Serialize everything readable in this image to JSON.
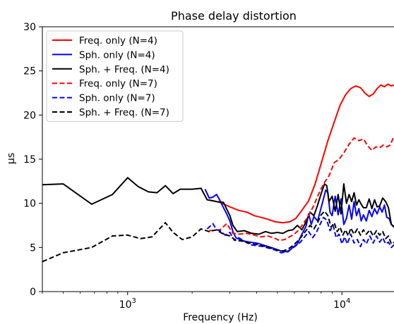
{
  "chart_data": {
    "type": "line",
    "title": "Phase delay distortion",
    "xlabel": "Frequency (Hz)",
    "ylabel": "μs",
    "xscale": "log",
    "xlim": [
      400,
      17500
    ],
    "ylim": [
      0,
      30
    ],
    "grid": false,
    "legend_position": "top-left",
    "x_tick_labels": [
      {
        "value": 1000,
        "base": "10",
        "exp": "3"
      },
      {
        "value": 10000,
        "base": "10",
        "exp": "4"
      }
    ],
    "y_ticks": [
      0,
      5,
      10,
      15,
      20,
      25,
      30
    ],
    "series": [
      {
        "name": "Freq. only (N=4)",
        "color": "#ff0000",
        "style": "solid",
        "points": [
          [
            2400,
            10.4
          ],
          [
            2700,
            10.1
          ],
          [
            3000,
            9.6
          ],
          [
            3300,
            9.2
          ],
          [
            3600,
            9.0
          ],
          [
            3900,
            8.6
          ],
          [
            4200,
            8.4
          ],
          [
            4500,
            8.2
          ],
          [
            4900,
            7.9
          ],
          [
            5300,
            7.8
          ],
          [
            5700,
            7.9
          ],
          [
            6100,
            8.3
          ],
          [
            6500,
            9.2
          ],
          [
            7000,
            10.3
          ],
          [
            7500,
            12.2
          ],
          [
            8000,
            14.5
          ],
          [
            8600,
            17.1
          ],
          [
            9200,
            19.2
          ],
          [
            9800,
            21.1
          ],
          [
            10400,
            22.3
          ],
          [
            11000,
            23.0
          ],
          [
            11600,
            23.3
          ],
          [
            12200,
            23.1
          ],
          [
            12800,
            22.5
          ],
          [
            13400,
            22.1
          ],
          [
            14000,
            22.4
          ],
          [
            14600,
            23.0
          ],
          [
            15200,
            23.4
          ],
          [
            15800,
            23.2
          ],
          [
            16400,
            23.5
          ],
          [
            17000,
            23.3
          ],
          [
            17500,
            23.4
          ]
        ]
      },
      {
        "name": "Sph. only (N=4)",
        "color": "#0000ff",
        "style": "solid",
        "points": [
          [
            2300,
            11.6
          ],
          [
            2400,
            10.6
          ],
          [
            2500,
            10.7
          ],
          [
            2600,
            11.0
          ],
          [
            2700,
            10.3
          ],
          [
            2800,
            9.5
          ],
          [
            2900,
            8.8
          ],
          [
            3000,
            8.0
          ],
          [
            3100,
            6.8
          ],
          [
            3200,
            6.1
          ],
          [
            3400,
            5.8
          ],
          [
            3700,
            5.6
          ],
          [
            4000,
            5.5
          ],
          [
            4400,
            5.2
          ],
          [
            4800,
            4.9
          ],
          [
            5200,
            4.6
          ],
          [
            5600,
            4.5
          ],
          [
            5900,
            5.0
          ],
          [
            6200,
            5.4
          ],
          [
            6500,
            6.5
          ],
          [
            6800,
            7.4
          ],
          [
            7000,
            8.8
          ],
          [
            7200,
            7.6
          ],
          [
            7400,
            8.5
          ],
          [
            7700,
            8.0
          ],
          [
            8000,
            9.5
          ],
          [
            8200,
            10.5
          ],
          [
            8400,
            11.5
          ],
          [
            8600,
            11.2
          ],
          [
            8800,
            9.0
          ],
          [
            9000,
            8.6
          ],
          [
            9300,
            10.8
          ],
          [
            9600,
            8.7
          ],
          [
            9900,
            10.5
          ],
          [
            10200,
            7.6
          ],
          [
            10500,
            8.3
          ],
          [
            10800,
            9.8
          ],
          [
            11100,
            8.2
          ],
          [
            11400,
            10.2
          ],
          [
            11700,
            8.6
          ],
          [
            12000,
            9.4
          ],
          [
            12300,
            8.0
          ],
          [
            12600,
            8.7
          ],
          [
            13000,
            8.0
          ],
          [
            13400,
            9.2
          ],
          [
            13800,
            8.5
          ],
          [
            14200,
            9.4
          ],
          [
            14600,
            8.8
          ],
          [
            15000,
            9.6
          ],
          [
            15400,
            9.0
          ],
          [
            15800,
            9.8
          ],
          [
            16200,
            8.4
          ],
          [
            16600,
            8.3
          ],
          [
            17000,
            7.6
          ],
          [
            17500,
            7.4
          ]
        ]
      },
      {
        "name": "Sph. + Freq. (N=4)",
        "color": "#000000",
        "style": "solid",
        "points": [
          [
            400,
            12.1
          ],
          [
            500,
            12.2
          ],
          [
            680,
            9.9
          ],
          [
            850,
            11.0
          ],
          [
            1000,
            12.9
          ],
          [
            1120,
            11.9
          ],
          [
            1250,
            11.3
          ],
          [
            1370,
            11.2
          ],
          [
            1500,
            12.0
          ],
          [
            1630,
            11.1
          ],
          [
            1760,
            11.6
          ],
          [
            2000,
            11.6
          ],
          [
            2200,
            11.7
          ],
          [
            2350,
            10.4
          ],
          [
            2600,
            10.2
          ],
          [
            2800,
            10.1
          ],
          [
            3000,
            8.6
          ],
          [
            3100,
            7.5
          ],
          [
            3250,
            6.8
          ],
          [
            3500,
            6.9
          ],
          [
            3800,
            6.6
          ],
          [
            4100,
            6.5
          ],
          [
            4400,
            6.8
          ],
          [
            4700,
            6.6
          ],
          [
            5000,
            6.7
          ],
          [
            5300,
            6.6
          ],
          [
            5600,
            6.9
          ],
          [
            5900,
            7.0
          ],
          [
            6200,
            7.5
          ],
          [
            6500,
            7.0
          ],
          [
            6800,
            7.9
          ],
          [
            7100,
            9.0
          ],
          [
            7400,
            8.6
          ],
          [
            7700,
            9.8
          ],
          [
            8000,
            11.1
          ],
          [
            8300,
            12.2
          ],
          [
            8500,
            12.0
          ],
          [
            8700,
            10.2
          ],
          [
            9000,
            10.8
          ],
          [
            9300,
            9.1
          ],
          [
            9600,
            11.0
          ],
          [
            9900,
            8.8
          ],
          [
            10200,
            12.2
          ],
          [
            10500,
            10.0
          ],
          [
            10800,
            11.0
          ],
          [
            11100,
            10.2
          ],
          [
            11400,
            11.2
          ],
          [
            11700,
            9.8
          ],
          [
            12000,
            10.4
          ],
          [
            12300,
            9.9
          ],
          [
            12600,
            9.5
          ],
          [
            13000,
            9.5
          ],
          [
            13400,
            10.5
          ],
          [
            13800,
            9.4
          ],
          [
            14200,
            10.4
          ],
          [
            14600,
            9.6
          ],
          [
            15000,
            9.7
          ],
          [
            15500,
            10.6
          ],
          [
            16000,
            10.2
          ],
          [
            16500,
            9.5
          ],
          [
            17000,
            7.6
          ],
          [
            17500,
            7.3
          ]
        ]
      },
      {
        "name": "Freq. only (N=7)",
        "color": "#ff0000",
        "style": "dashed",
        "points": [
          [
            2400,
            6.9
          ],
          [
            2700,
            7.0
          ],
          [
            2900,
            7.7
          ],
          [
            3100,
            6.6
          ],
          [
            3300,
            6.5
          ],
          [
            3600,
            6.6
          ],
          [
            3900,
            6.4
          ],
          [
            4200,
            6.2
          ],
          [
            4500,
            6.3
          ],
          [
            4800,
            6.1
          ],
          [
            5100,
            5.8
          ],
          [
            5400,
            5.9
          ],
          [
            5700,
            6.2
          ],
          [
            6000,
            6.5
          ],
          [
            6300,
            7.0
          ],
          [
            6600,
            7.7
          ],
          [
            7000,
            8.6
          ],
          [
            7400,
            9.8
          ],
          [
            7800,
            11.1
          ],
          [
            8200,
            12.2
          ],
          [
            8700,
            13.1
          ],
          [
            9200,
            14.6
          ],
          [
            9700,
            15.0
          ],
          [
            10200,
            15.7
          ],
          [
            10800,
            16.7
          ],
          [
            11400,
            17.4
          ],
          [
            12000,
            17.1
          ],
          [
            12600,
            17.3
          ],
          [
            13200,
            16.5
          ],
          [
            13800,
            16.0
          ],
          [
            14400,
            16.4
          ],
          [
            15000,
            16.3
          ],
          [
            15600,
            16.6
          ],
          [
            16200,
            16.4
          ],
          [
            16800,
            16.6
          ],
          [
            17500,
            17.6
          ]
        ]
      },
      {
        "name": "Sph. only (N=7)",
        "color": "#0000ff",
        "style": "dashed",
        "points": [
          [
            2350,
            7.1
          ],
          [
            2500,
            7.7
          ],
          [
            2600,
            7.0
          ],
          [
            2700,
            6.9
          ],
          [
            2850,
            6.4
          ],
          [
            3000,
            6.7
          ],
          [
            3150,
            5.8
          ],
          [
            3300,
            6.1
          ],
          [
            3500,
            5.7
          ],
          [
            3750,
            5.3
          ],
          [
            4000,
            5.2
          ],
          [
            4300,
            5.1
          ],
          [
            4600,
            4.9
          ],
          [
            4900,
            4.7
          ],
          [
            5200,
            4.4
          ],
          [
            5500,
            4.5
          ],
          [
            5800,
            4.8
          ],
          [
            6100,
            5.2
          ],
          [
            6400,
            5.6
          ],
          [
            6700,
            6.2
          ],
          [
            7000,
            6.8
          ],
          [
            7300,
            6.1
          ],
          [
            7600,
            6.7
          ],
          [
            7900,
            7.6
          ],
          [
            8200,
            8.4
          ],
          [
            8500,
            8.1
          ],
          [
            8800,
            6.9
          ],
          [
            9100,
            7.5
          ],
          [
            9400,
            6.1
          ],
          [
            9700,
            6.5
          ],
          [
            10000,
            5.4
          ],
          [
            10300,
            6.2
          ],
          [
            10600,
            5.4
          ],
          [
            11000,
            6.5
          ],
          [
            11400,
            5.5
          ],
          [
            11800,
            5.9
          ],
          [
            12200,
            5.1
          ],
          [
            12600,
            5.9
          ],
          [
            13000,
            5.4
          ],
          [
            13500,
            6.3
          ],
          [
            14000,
            5.5
          ],
          [
            14500,
            6.3
          ],
          [
            15000,
            5.6
          ],
          [
            15500,
            6.1
          ],
          [
            16000,
            5.4
          ],
          [
            16500,
            5.6
          ],
          [
            17000,
            5.0
          ],
          [
            17500,
            5.3
          ]
        ]
      },
      {
        "name": "Sph. + Freq. (N=7)",
        "color": "#000000",
        "style": "dashed",
        "points": [
          [
            400,
            3.4
          ],
          [
            500,
            4.4
          ],
          [
            680,
            5.0
          ],
          [
            850,
            6.3
          ],
          [
            1000,
            6.4
          ],
          [
            1150,
            6.0
          ],
          [
            1300,
            6.2
          ],
          [
            1500,
            7.8
          ],
          [
            1630,
            6.7
          ],
          [
            1800,
            5.9
          ],
          [
            2000,
            6.2
          ],
          [
            2200,
            7.1
          ],
          [
            2400,
            6.8
          ],
          [
            2600,
            7.0
          ],
          [
            2800,
            6.5
          ],
          [
            3000,
            6.3
          ],
          [
            3200,
            5.8
          ],
          [
            3500,
            5.7
          ],
          [
            3800,
            5.4
          ],
          [
            4100,
            5.3
          ],
          [
            4400,
            5.1
          ],
          [
            4700,
            4.9
          ],
          [
            5000,
            4.7
          ],
          [
            5300,
            4.6
          ],
          [
            5600,
            4.8
          ],
          [
            5900,
            5.2
          ],
          [
            6200,
            5.7
          ],
          [
            6500,
            6.3
          ],
          [
            6800,
            6.9
          ],
          [
            7100,
            7.5
          ],
          [
            7400,
            7.1
          ],
          [
            7700,
            7.8
          ],
          [
            8000,
            8.7
          ],
          [
            8300,
            9.1
          ],
          [
            8600,
            8.6
          ],
          [
            8900,
            7.3
          ],
          [
            9200,
            7.8
          ],
          [
            9500,
            6.8
          ],
          [
            9800,
            7.3
          ],
          [
            10100,
            6.4
          ],
          [
            10400,
            7.0
          ],
          [
            10700,
            6.3
          ],
          [
            11000,
            7.2
          ],
          [
            11400,
            6.5
          ],
          [
            11800,
            7.1
          ],
          [
            12200,
            6.4
          ],
          [
            12600,
            7.0
          ],
          [
            13000,
            6.5
          ],
          [
            13500,
            7.0
          ],
          [
            14000,
            6.3
          ],
          [
            14500,
            6.9
          ],
          [
            15000,
            6.4
          ],
          [
            15500,
            6.8
          ],
          [
            16000,
            6.0
          ],
          [
            16500,
            6.3
          ],
          [
            17000,
            5.4
          ],
          [
            17500,
            5.6
          ]
        ]
      }
    ]
  }
}
